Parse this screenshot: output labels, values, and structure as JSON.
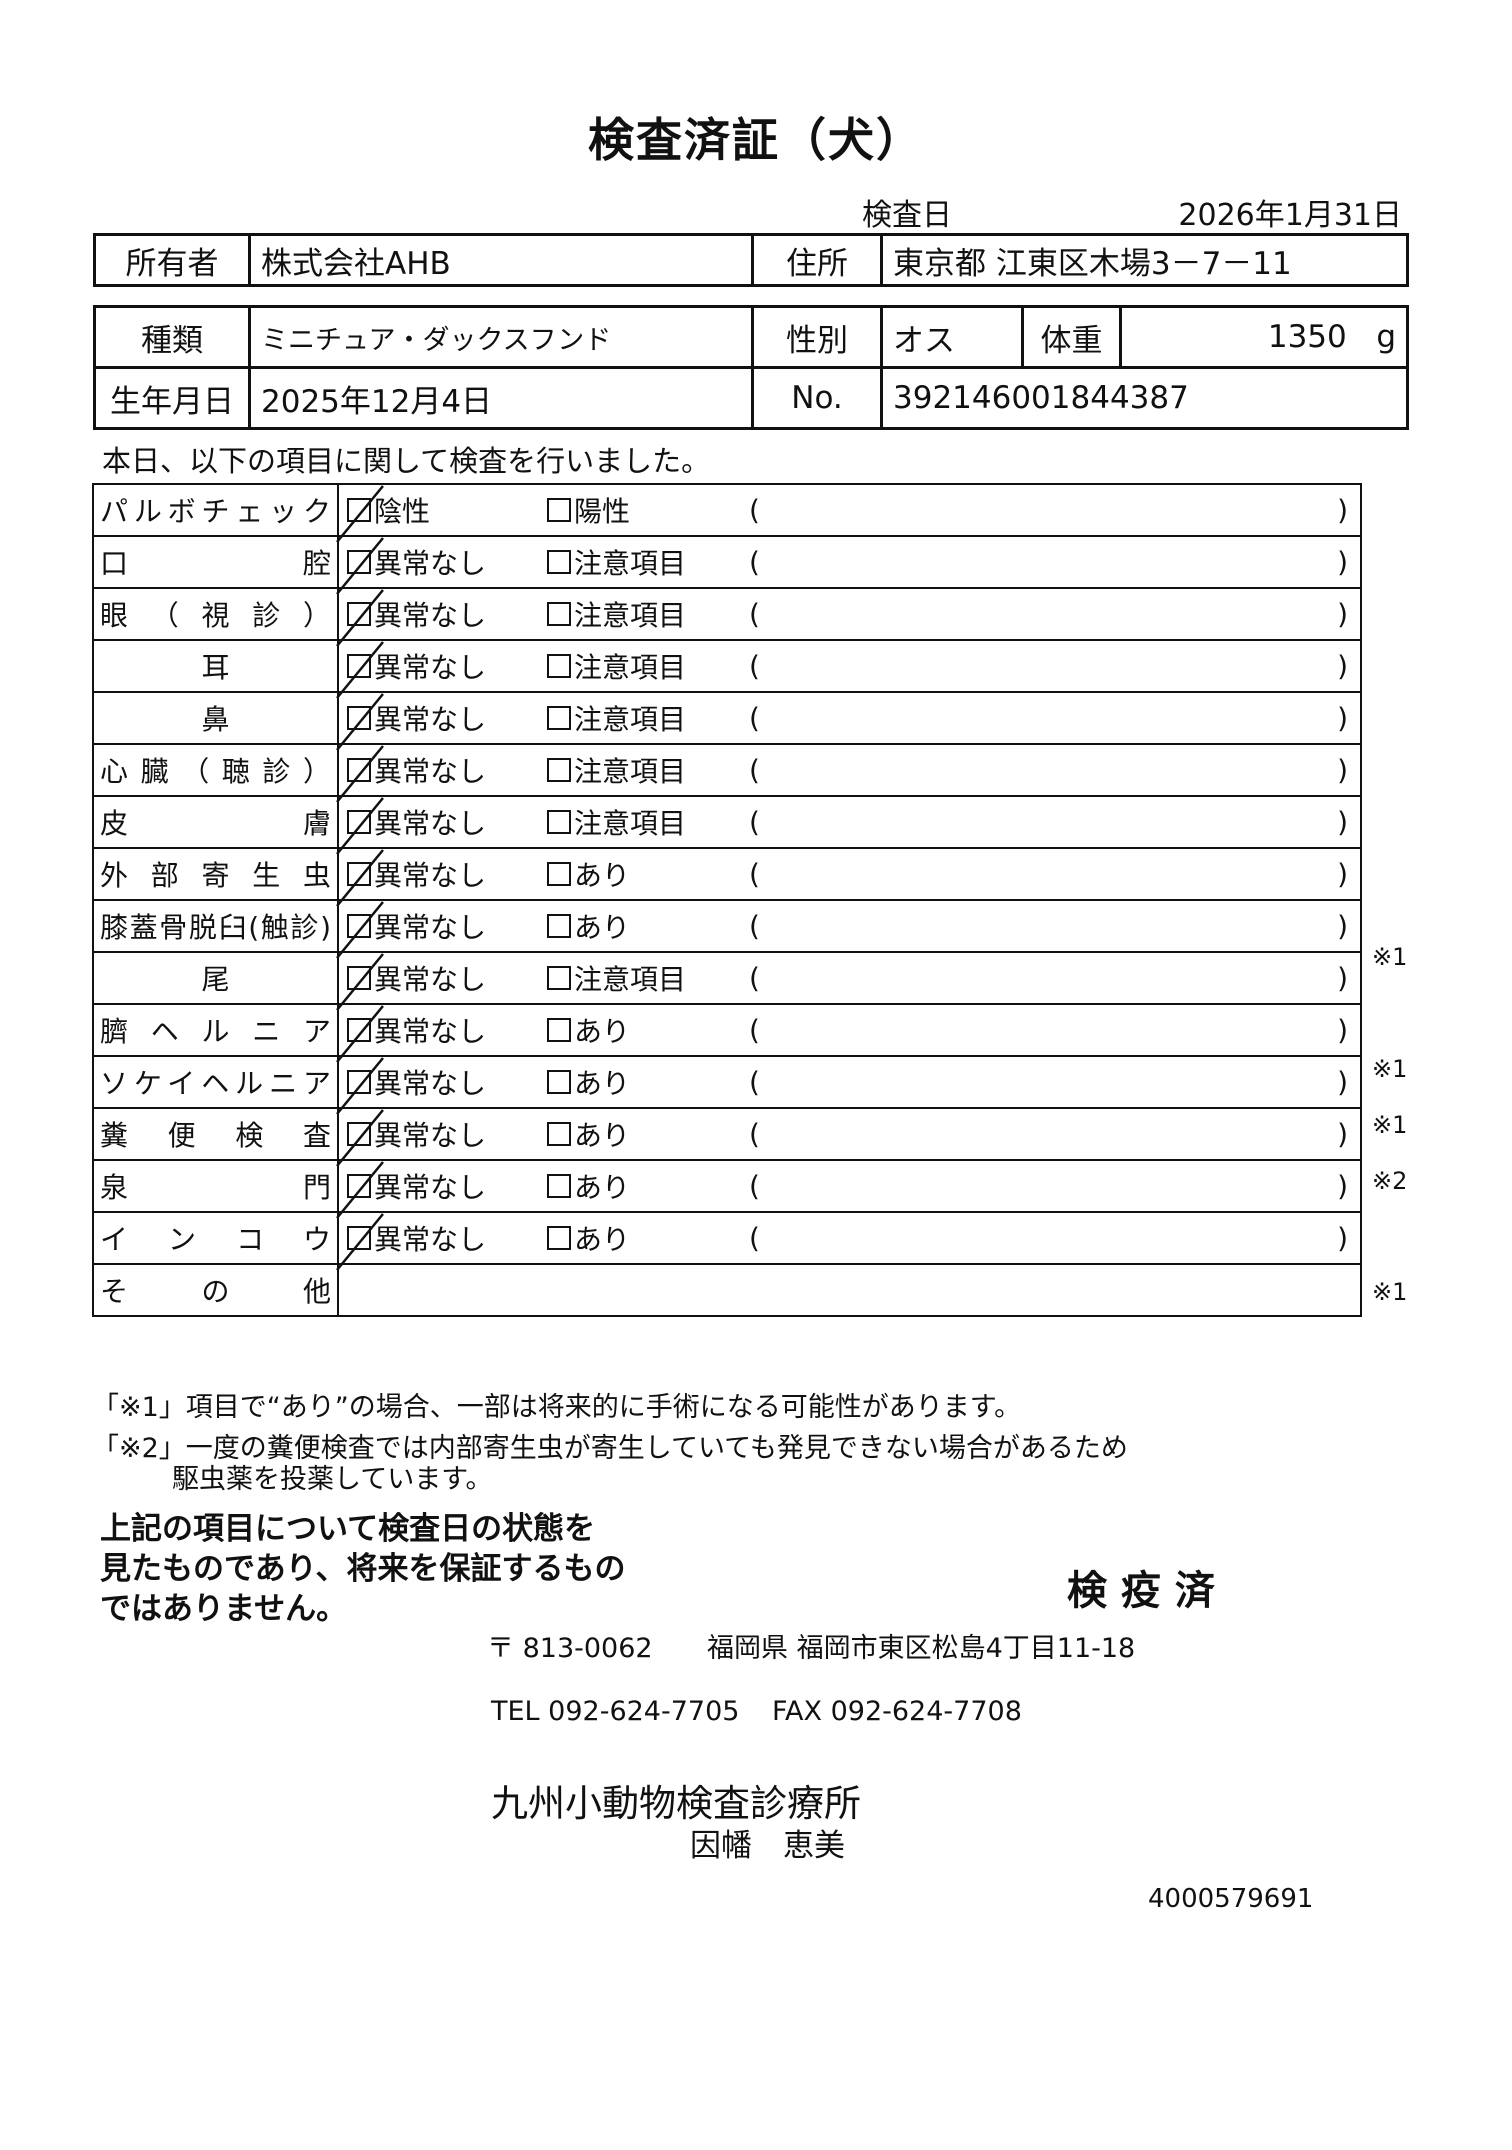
{
  "title": "検査済証（犬）",
  "inspection_date_label": "検査日",
  "inspection_date": "2026年1月31日",
  "owner": {
    "label": "所有者",
    "value": "株式会社AHB",
    "address_label": "住所",
    "address": "東京都 江東区木場3－7－11"
  },
  "animal": {
    "breed_label": "種類",
    "breed": "ミニチュア・ダックスフンド",
    "sex_label": "性別",
    "sex": "オス",
    "weight_label": "体重",
    "weight": "1350",
    "weight_unit": "g",
    "birth_label": "生年月日",
    "birth": "2025年12月4日",
    "no_label": "No.",
    "no": "392146001844387"
  },
  "intro": "本日、以下の項目に関して検査を行いました。",
  "checks": [
    {
      "label": "パルボチェック",
      "opt1": "陰性",
      "opt2": "陽性",
      "checked": true,
      "note": "",
      "align": "j"
    },
    {
      "label": "口腔",
      "opt1": "異常なし",
      "opt2": "注意項目",
      "checked": true,
      "note": "",
      "align": "j"
    },
    {
      "label": "眼（視診）",
      "opt1": "異常なし",
      "opt2": "注意項目",
      "checked": true,
      "note": "",
      "align": "j"
    },
    {
      "label": "耳",
      "opt1": "異常なし",
      "opt2": "注意項目",
      "checked": true,
      "note": "",
      "align": "c"
    },
    {
      "label": "鼻",
      "opt1": "異常なし",
      "opt2": "注意項目",
      "checked": true,
      "note": "",
      "align": "c"
    },
    {
      "label": "心臓（聴診）",
      "opt1": "異常なし",
      "opt2": "注意項目",
      "checked": true,
      "note": "",
      "align": "j"
    },
    {
      "label": "皮膚",
      "opt1": "異常なし",
      "opt2": "注意項目",
      "checked": true,
      "note": "",
      "align": "j"
    },
    {
      "label": "外部寄生虫",
      "opt1": "異常なし",
      "opt2": "あり",
      "checked": true,
      "note": "",
      "align": "j"
    },
    {
      "label": "膝蓋骨脱臼(触診)",
      "opt1": "異常なし",
      "opt2": "あり",
      "checked": true,
      "note": "※1",
      "align": "j"
    },
    {
      "label": "尾",
      "opt1": "異常なし",
      "opt2": "注意項目",
      "checked": true,
      "note": "",
      "align": "c"
    },
    {
      "label": "臍ヘルニア",
      "opt1": "異常なし",
      "opt2": "あり",
      "checked": true,
      "note": "※1",
      "align": "j"
    },
    {
      "label": "ソケイヘルニア",
      "opt1": "異常なし",
      "opt2": "あり",
      "checked": true,
      "note": "※1",
      "align": "j"
    },
    {
      "label": "糞便検査",
      "opt1": "異常なし",
      "opt2": "あり",
      "checked": true,
      "note": "※2",
      "align": "j"
    },
    {
      "label": "泉門",
      "opt1": "異常なし",
      "opt2": "あり",
      "checked": true,
      "note": "",
      "align": "j"
    },
    {
      "label": "インコウ",
      "opt1": "異常なし",
      "opt2": "あり",
      "checked": true,
      "note": "※1",
      "align": "j"
    }
  ],
  "other_label": "その他",
  "paren_open": "(",
  "paren_close": ")",
  "footnotes": [
    "「※1」項目で“あり”の場合、一部は将来的に手術になる可能性があります。",
    "「※2」一度の糞便検査では内部寄生虫が寄生していても発見できない場合があるため",
    "駆虫薬を投薬しています。"
  ],
  "disclaimer": [
    "上記の項目について検査日の状態を",
    "見たものであり、将来を保証するもの",
    "ではありません。"
  ],
  "stamp": "検 疫 済",
  "clinic": {
    "postal": "〒 813-0062",
    "address": "福岡県 福岡市東区松島4丁目11-18",
    "tel": "TEL 092-624-7705",
    "fax": "FAX 092-624-7708",
    "name": "九州小動物検査診療所",
    "person": "因幡　恵美"
  },
  "doc_number": "4000579691"
}
